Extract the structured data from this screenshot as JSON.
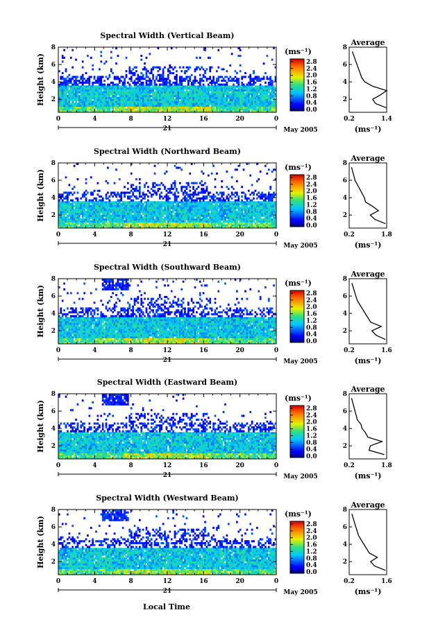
{
  "figure": {
    "xaxis_label": "Local Time",
    "date_label": "May 2005",
    "day_label": "21",
    "x_ticks": [
      "0",
      "4",
      "8",
      "12",
      "16",
      "20",
      "0"
    ],
    "y_ticks": [
      "2",
      "4",
      "6",
      "8"
    ],
    "height_label": "Height (km)",
    "colorbar_unit": "(ms⁻¹)",
    "colorbar_ticks": [
      "0.0",
      "0.4",
      "0.8",
      "1.2",
      "1.6",
      "2.0",
      "2.4",
      "2.8"
    ],
    "avg_title": "Average",
    "avg_y_ticks": [
      "2",
      "4",
      "6",
      "8"
    ],
    "avg_unit": "(ms⁻¹)"
  },
  "chart_data": [
    {
      "type": "heatmap",
      "title": "Spectral Width (Vertical Beam)",
      "ylabel": "Height (km)",
      "xlim": [
        0,
        24
      ],
      "ylim": [
        0.5,
        8
      ],
      "colorbar_range": [
        0.0,
        2.8
      ],
      "avg_profile": {
        "xlim": [
          0.2,
          1.4
        ],
        "x_ticks": [
          "0.2",
          "1.4"
        ],
        "height_km": [
          1.0,
          1.5,
          2.0,
          2.5,
          3.0,
          3.5,
          4.0,
          4.5,
          5.0,
          5.5,
          6.0,
          6.5,
          7.0,
          7.5
        ],
        "width_ms": [
          1.4,
          1.05,
          0.95,
          1.2,
          1.4,
          0.95,
          0.7,
          0.6,
          0.55,
          0.5,
          0.45,
          0.4,
          0.35,
          0.3
        ]
      }
    },
    {
      "type": "heatmap",
      "title": "Spectral Width (Northward Beam)",
      "ylabel": "Height (km)",
      "xlim": [
        0,
        24
      ],
      "ylim": [
        0.5,
        8
      ],
      "colorbar_range": [
        0.0,
        2.8
      ],
      "avg_profile": {
        "xlim": [
          0.2,
          1.8
        ],
        "x_ticks": [
          "0.2",
          "1.8"
        ],
        "height_km": [
          1.0,
          1.5,
          2.0,
          2.5,
          3.0,
          3.5,
          4.0,
          4.5,
          5.0,
          5.5,
          6.0,
          6.5,
          7.0,
          7.5
        ],
        "width_ms": [
          1.75,
          1.3,
          1.1,
          1.45,
          1.2,
          0.9,
          0.85,
          0.75,
          0.65,
          0.55,
          0.45,
          0.4,
          0.35,
          0.3
        ]
      }
    },
    {
      "type": "heatmap",
      "title": "Spectral Width (Southward Beam)",
      "ylabel": "Height (km)",
      "xlim": [
        0,
        24
      ],
      "ylim": [
        0.5,
        8
      ],
      "colorbar_range": [
        0.0,
        2.8
      ],
      "avg_profile": {
        "xlim": [
          0.2,
          1.6
        ],
        "x_ticks": [
          "0.2",
          "1.6"
        ],
        "height_km": [
          1.0,
          1.5,
          2.0,
          2.5,
          3.0,
          3.5,
          4.0,
          4.5,
          5.0,
          5.5,
          6.0,
          6.5,
          7.0,
          7.5
        ],
        "width_ms": [
          1.55,
          1.2,
          1.05,
          1.4,
          1.0,
          0.9,
          0.8,
          0.7,
          0.6,
          0.5,
          0.45,
          0.4,
          0.35,
          0.3
        ]
      }
    },
    {
      "type": "heatmap",
      "title": "Spectral Width (Eastward Beam)",
      "ylabel": "Height (km)",
      "xlim": [
        0,
        24
      ],
      "ylim": [
        0.5,
        8
      ],
      "colorbar_range": [
        0.0,
        2.8
      ],
      "avg_profile": {
        "xlim": [
          0.2,
          1.8
        ],
        "x_ticks": [
          "0.2",
          "1.8"
        ],
        "height_km": [
          1.0,
          1.5,
          2.0,
          2.5,
          3.0,
          3.5,
          4.0,
          4.5,
          5.0,
          5.5,
          6.0,
          6.5,
          7.0,
          7.5
        ],
        "width_ms": [
          1.7,
          1.05,
          1.1,
          1.6,
          1.0,
          0.9,
          0.75,
          0.7,
          0.55,
          0.5,
          0.45,
          0.4,
          0.35,
          0.3
        ]
      }
    },
    {
      "type": "heatmap",
      "title": "Spectral Width (Westward Beam)",
      "ylabel": "Height (km)",
      "xlim": [
        0,
        24
      ],
      "ylim": [
        0.5,
        8
      ],
      "colorbar_range": [
        0.0,
        2.8
      ],
      "avg_profile": {
        "xlim": [
          0.2,
          1.6
        ],
        "x_ticks": [
          "0.2",
          "1.6"
        ],
        "height_km": [
          1.0,
          1.5,
          2.0,
          2.5,
          3.0,
          3.5,
          4.0,
          4.5,
          5.0,
          5.5,
          6.0,
          6.5,
          7.0,
          7.5
        ],
        "width_ms": [
          1.55,
          1.15,
          1.0,
          1.25,
          0.95,
          0.85,
          0.75,
          0.65,
          0.55,
          0.5,
          0.45,
          0.4,
          0.35,
          0.3
        ]
      }
    }
  ]
}
